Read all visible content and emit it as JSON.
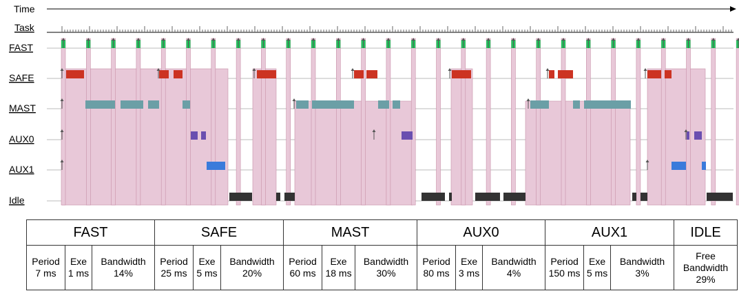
{
  "axis": {
    "time_label": "Time",
    "task_label": "Task"
  },
  "tasks": [
    {
      "name": "FAST",
      "color": "#22c55e"
    },
    {
      "name": "SAFE",
      "color": "#cc3322"
    },
    {
      "name": "MAST",
      "color": "#6b9fa6"
    },
    {
      "name": "AUX0",
      "color": "#6a4fb0"
    },
    {
      "name": "AUX1",
      "color": "#3a7bdb"
    },
    {
      "name": "Idle",
      "color": "#333333"
    }
  ],
  "colors": {
    "preempt_band": "#e8c8d8",
    "preempt_border": "#c890a8",
    "grid": "#bbbbbb",
    "arrow": "#555555"
  },
  "summary": {
    "groups": [
      {
        "label": "FAST",
        "cols": [
          [
            "Period",
            "7 ms"
          ],
          [
            "Exe",
            "1 ms"
          ],
          [
            "Bandwidth",
            "14%"
          ]
        ]
      },
      {
        "label": "SAFE",
        "cols": [
          [
            "Period",
            "25 ms"
          ],
          [
            "Exe",
            "5 ms"
          ],
          [
            "Bandwidth",
            "20%"
          ]
        ]
      },
      {
        "label": "MAST",
        "cols": [
          [
            "Period",
            "60 ms"
          ],
          [
            "Exe",
            "18 ms"
          ],
          [
            "Bandwidth",
            "30%"
          ]
        ]
      },
      {
        "label": "AUX0",
        "cols": [
          [
            "Period",
            "80 ms"
          ],
          [
            "Exe",
            "3 ms"
          ],
          [
            "Bandwidth",
            "4%"
          ]
        ]
      },
      {
        "label": "AUX1",
        "cols": [
          [
            "Period",
            "150 ms"
          ],
          [
            "Exe",
            "5 ms"
          ],
          [
            "Bandwidth",
            "3%"
          ]
        ]
      },
      {
        "label": "IDLE",
        "cols": [
          [
            "Free",
            "Bandwidth",
            "29%"
          ]
        ]
      }
    ]
  }
}
